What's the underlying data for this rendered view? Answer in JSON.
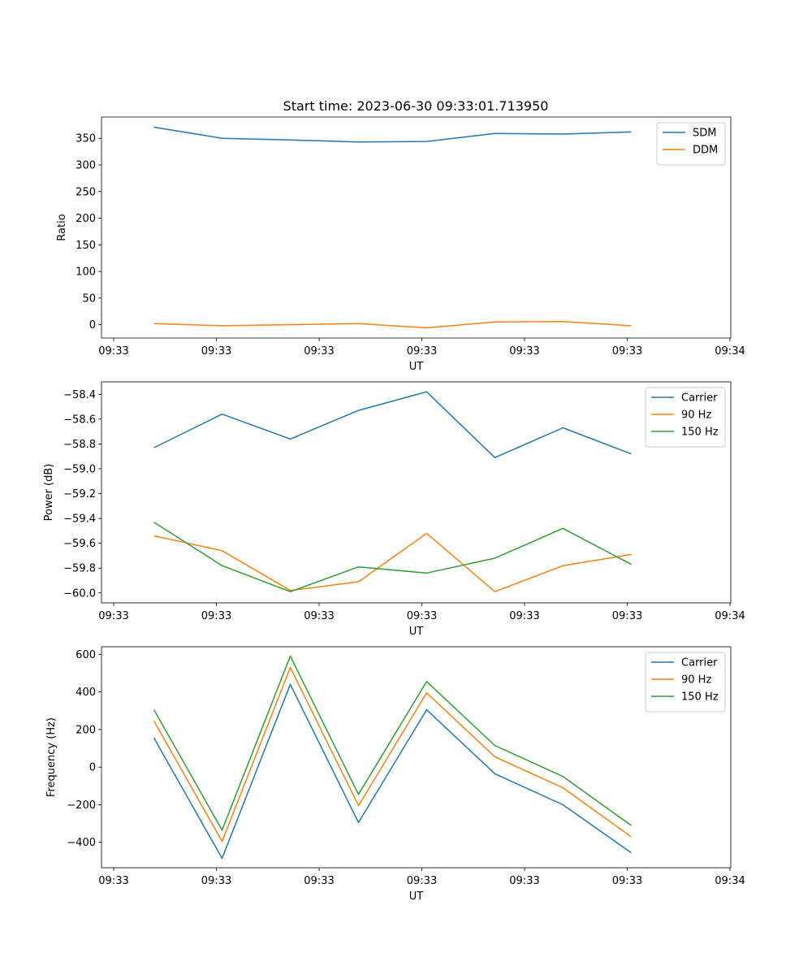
{
  "figure": {
    "title": "Start time: 2023-06-30 09:33:01.713950"
  },
  "colors": {
    "blue": "#1f77b4",
    "orange": "#ff7f0e",
    "green": "#2ca02c"
  },
  "chart_data": [
    {
      "type": "line",
      "name": "ratio-panel",
      "title": "Start time: 2023-06-30 09:33:01.713950",
      "xlabel": "UT",
      "ylabel": "Ratio",
      "x_tick_labels": [
        "09:33",
        "09:33",
        "09:33",
        "09:33",
        "09:33",
        "09:33",
        "09:34"
      ],
      "xlim": [
        0,
        6
      ],
      "x": [
        0.5,
        1.15,
        1.8,
        2.45,
        3.1,
        3.75,
        4.4,
        5.05
      ],
      "ylim": [
        -25,
        390
      ],
      "y_ticks": [
        0,
        50,
        100,
        150,
        200,
        250,
        300,
        350
      ],
      "legend": "top-right",
      "grid": false,
      "series": [
        {
          "name": "SDM",
          "color": "#1f77b4",
          "values": [
            371,
            350,
            347,
            343,
            344,
            359,
            358,
            362
          ]
        },
        {
          "name": "DDM",
          "color": "#ff7f0e",
          "values": [
            2,
            -2,
            0,
            2,
            -6,
            5,
            6,
            -2
          ]
        }
      ]
    },
    {
      "type": "line",
      "name": "power-panel",
      "xlabel": "UT",
      "ylabel": "Power (dB)",
      "x_tick_labels": [
        "09:33",
        "09:33",
        "09:33",
        "09:33",
        "09:33",
        "09:33",
        "09:34"
      ],
      "xlim": [
        0,
        6
      ],
      "x": [
        0.5,
        1.15,
        1.8,
        2.45,
        3.1,
        3.75,
        4.4,
        5.05
      ],
      "ylim": [
        -60.08,
        -58.3
      ],
      "y_ticks": [
        -60.0,
        -59.8,
        -59.6,
        -59.4,
        -59.2,
        -59.0,
        -58.8,
        -58.6,
        -58.4
      ],
      "legend": "top-right",
      "grid": false,
      "series": [
        {
          "name": "Carrier",
          "color": "#1f77b4",
          "values": [
            -58.83,
            -58.56,
            -58.76,
            -58.53,
            -58.38,
            -58.91,
            -58.67,
            -58.88
          ]
        },
        {
          "name": "90 Hz",
          "color": "#ff7f0e",
          "values": [
            -59.54,
            -59.66,
            -59.98,
            -59.91,
            -59.52,
            -59.99,
            -59.78,
            -59.69
          ]
        },
        {
          "name": "150 Hz",
          "color": "#2ca02c",
          "values": [
            -59.43,
            -59.78,
            -59.99,
            -59.79,
            -59.84,
            -59.72,
            -59.48,
            -59.77
          ]
        }
      ]
    },
    {
      "type": "line",
      "name": "frequency-panel",
      "xlabel": "UT",
      "ylabel": "Frequency (Hz)",
      "x_tick_labels": [
        "09:33",
        "09:33",
        "09:33",
        "09:33",
        "09:33",
        "09:33",
        "09:34"
      ],
      "xlim": [
        0,
        6
      ],
      "x": [
        0.5,
        1.15,
        1.8,
        2.45,
        3.1,
        3.75,
        4.4,
        5.05
      ],
      "ylim": [
        -535,
        640
      ],
      "y_ticks": [
        -400,
        -200,
        0,
        200,
        400,
        600
      ],
      "legend": "top-right",
      "grid": false,
      "series": [
        {
          "name": "Carrier",
          "color": "#1f77b4",
          "values": [
            155,
            -485,
            440,
            -295,
            305,
            -35,
            -200,
            -455
          ]
        },
        {
          "name": "90 Hz",
          "color": "#ff7f0e",
          "values": [
            245,
            -395,
            530,
            -205,
            395,
            55,
            -110,
            -370
          ]
        },
        {
          "name": "150 Hz",
          "color": "#2ca02c",
          "values": [
            305,
            -335,
            590,
            -145,
            455,
            115,
            -50,
            -310
          ]
        }
      ]
    }
  ]
}
